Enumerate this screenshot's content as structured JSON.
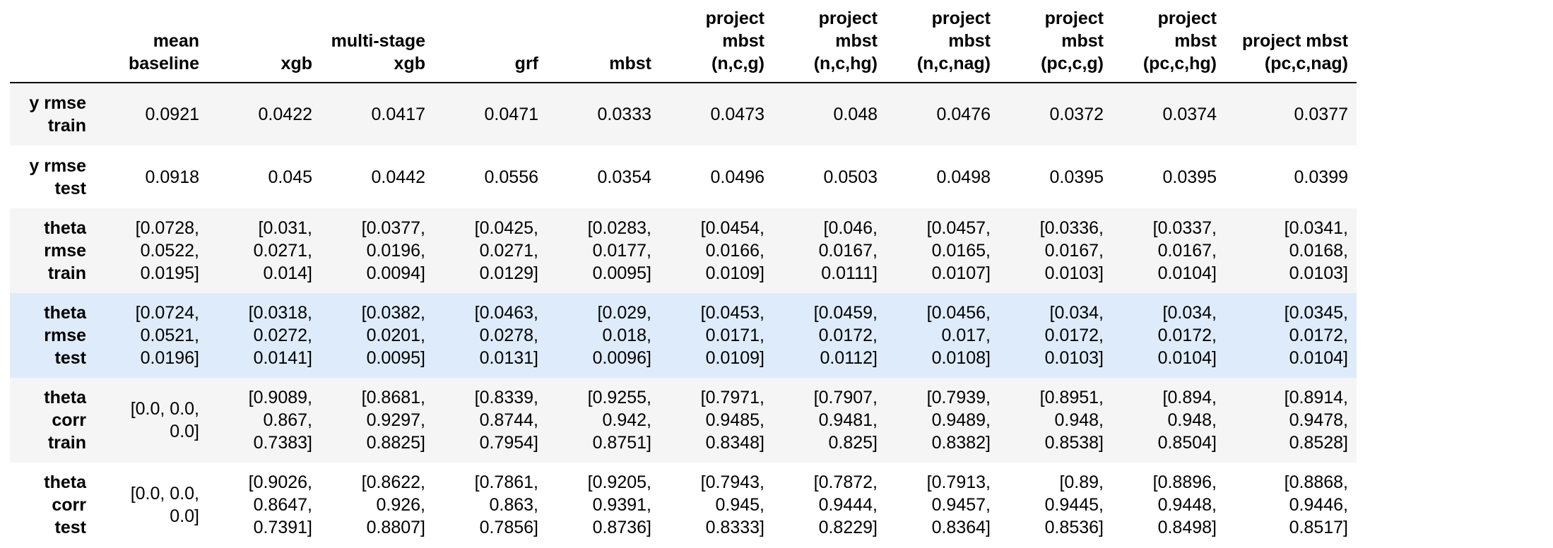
{
  "table": {
    "columns": [
      "mean baseline",
      "xgb",
      "multi-stage xgb",
      "grf",
      "mbst",
      "project mbst (n,c,g)",
      "project mbst (n,c,hg)",
      "project mbst (n,c,nag)",
      "project mbst (pc,c,g)",
      "project mbst (pc,c,hg)",
      "project mbst (pc,c,nag)"
    ],
    "rows": [
      {
        "label": "y rmse train",
        "cells": [
          "0.0921",
          "0.0422",
          "0.0417",
          "0.0471",
          "0.0333",
          "0.0473",
          "0.048",
          "0.0476",
          "0.0372",
          "0.0374",
          "0.0377"
        ]
      },
      {
        "label": "y rmse test",
        "cells": [
          "0.0918",
          "0.045",
          "0.0442",
          "0.0556",
          "0.0354",
          "0.0496",
          "0.0503",
          "0.0498",
          "0.0395",
          "0.0395",
          "0.0399"
        ]
      },
      {
        "label": "theta rmse train",
        "cells": [
          "[0.0728, 0.0522, 0.0195]",
          "[0.031, 0.0271, 0.014]",
          "[0.0377, 0.0196, 0.0094]",
          "[0.0425, 0.0271, 0.0129]",
          "[0.0283, 0.0177, 0.0095]",
          "[0.0454, 0.0166, 0.0109]",
          "[0.046, 0.0167, 0.0111]",
          "[0.0457, 0.0165, 0.0107]",
          "[0.0336, 0.0167, 0.0103]",
          "[0.0337, 0.0167, 0.0104]",
          "[0.0341, 0.0168, 0.0103]"
        ]
      },
      {
        "label": "theta rmse test",
        "cells": [
          "[0.0724, 0.0521, 0.0196]",
          "[0.0318, 0.0272, 0.0141]",
          "[0.0382, 0.0201, 0.0095]",
          "[0.0463, 0.0278, 0.0131]",
          "[0.029, 0.018, 0.0096]",
          "[0.0453, 0.0171, 0.0109]",
          "[0.0459, 0.0172, 0.0112]",
          "[0.0456, 0.017, 0.0108]",
          "[0.034, 0.0172, 0.0103]",
          "[0.034, 0.0172, 0.0104]",
          "[0.0345, 0.0172, 0.0104]"
        ]
      },
      {
        "label": "theta corr train",
        "cells": [
          "[0.0, 0.0, 0.0]",
          "[0.9089, 0.867, 0.7383]",
          "[0.8681, 0.9297, 0.8825]",
          "[0.8339, 0.8744, 0.7954]",
          "[0.9255, 0.942, 0.8751]",
          "[0.7971, 0.9485, 0.8348]",
          "[0.7907, 0.9481, 0.825]",
          "[0.7939, 0.9489, 0.8382]",
          "[0.8951, 0.948, 0.8538]",
          "[0.894, 0.948, 0.8504]",
          "[0.8914, 0.9478, 0.8528]"
        ]
      },
      {
        "label": "theta corr test",
        "cells": [
          "[0.0, 0.0, 0.0]",
          "[0.9026, 0.8647, 0.7391]",
          "[0.8622, 0.926, 0.8807]",
          "[0.7861, 0.863, 0.7856]",
          "[0.9205, 0.9391, 0.8736]",
          "[0.7943, 0.945, 0.8333]",
          "[0.7872, 0.9444, 0.8229]",
          "[0.7913, 0.9457, 0.8364]",
          "[0.89, 0.9445, 0.8536]",
          "[0.8896, 0.9448, 0.8498]",
          "[0.8868, 0.9446, 0.8517]"
        ]
      }
    ],
    "hover_row": 3
  }
}
